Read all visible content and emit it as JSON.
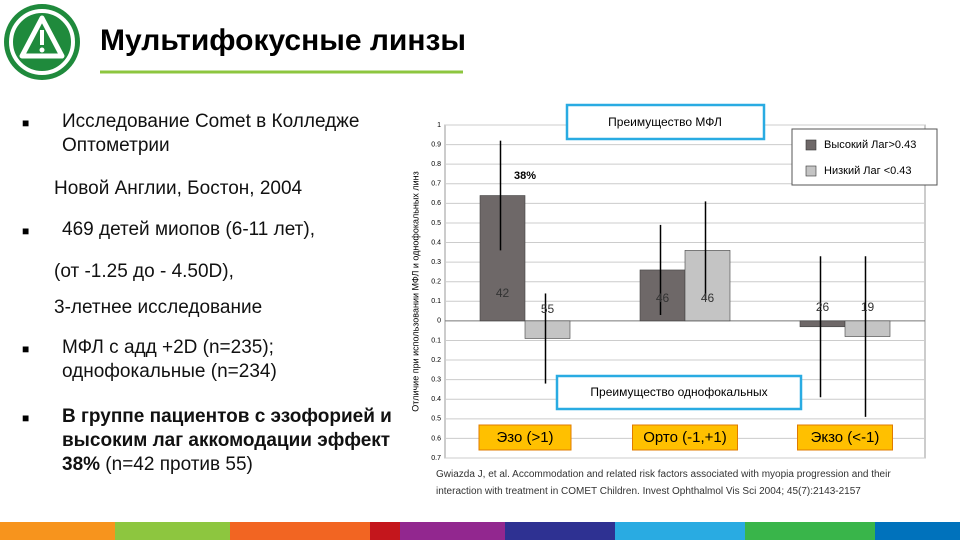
{
  "title": "Мультифокусные линзы",
  "bullets": [
    {
      "text": "Исследование Comet в Колледже Оптометрии"
    },
    {
      "text": "Новой Англии, Бостон, 2004"
    },
    {
      "text": " 469 детей миопов (6-11 лет),"
    },
    {
      "text": "(от -1.25 до - 4.50D),"
    },
    {
      "text": "3-летнее исследование"
    },
    {
      "text": "МФЛ с адд +2D (n=235); однофокальные (n=234)"
    },
    {
      "bold": "В группе пациентов с эзофорией и высоким лаг аккомодации эффект 38%",
      "text": " (n=42 против 55)"
    }
  ],
  "citation": "Gwiazda J, et al. Accommodation  and related risk factors associated  with myopia progression and their interaction  with treatment  in COMET Children. Invest Ophthalmol  Vis  Sci 2004; 45(7):2143-2157",
  "chart_data": {
    "type": "bar",
    "ylabel": "Отличие при использовании МФЛ и однофокальных  линз",
    "categories": [
      "Эзо (>1)",
      "Орто (-1,+1)",
      "Экзо (<-1)"
    ],
    "series": [
      {
        "name": "Высокий Лаг>0.43",
        "color": "#6e6868",
        "values": [
          0.64,
          0.26,
          -0.03
        ],
        "errors": [
          0.28,
          0.23,
          0.36
        ],
        "counts": [
          42,
          46,
          26
        ]
      },
      {
        "name": "Низкий Лаг  <0.43",
        "color": "#c4c4c4",
        "values": [
          -0.09,
          0.36,
          -0.08
        ],
        "errors": [
          0.23,
          0.25,
          0.41
        ],
        "counts": [
          55,
          46,
          19
        ]
      }
    ],
    "annotations": [
      "38%",
      "Преимущество МФЛ",
      "Преимущество однофокальных"
    ],
    "ylim": [
      -0.7,
      1
    ],
    "yticks": [
      1,
      0.9,
      0.8,
      0.7,
      0.6,
      0.5,
      0.4,
      0.3,
      0.2,
      0.1,
      0,
      {
        "value": -0.1,
        "label": "0.1"
      },
      {
        "value": -0.2,
        "label": "0.2"
      },
      {
        "value": -0.3,
        "label": "0.3"
      },
      {
        "value": -0.4,
        "label": "0.4"
      },
      {
        "value": -0.5,
        "label": "0.5"
      },
      {
        "value": -0.6,
        "label": "0.6"
      },
      {
        "value": -0.7,
        "label": "0.7"
      }
    ],
    "grid": true,
    "legend": "upper right"
  }
}
